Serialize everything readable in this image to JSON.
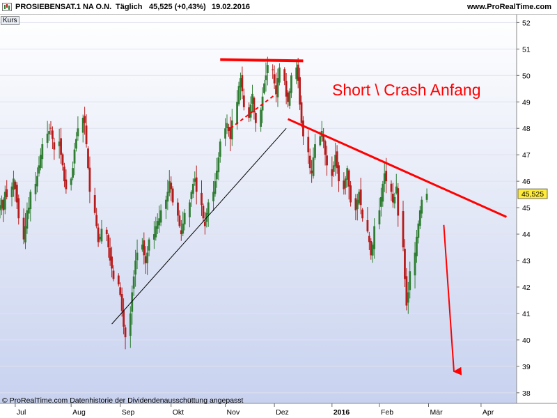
{
  "header": {
    "symbol": "PROSIEBENSAT.1  NA O.N.",
    "period": "Täglich",
    "price_change": "45,525 (+0,43%)",
    "date": "19.02.2016",
    "site": "www.ProRealTime.com"
  },
  "panel_label": "Kurs",
  "footer_note": "© ProRealTime.com  Datenhistorie der Dividendenausschüttung angepasst",
  "colors": {
    "up_candle": "#2e7d32",
    "down_candle": "#b71c1c",
    "annotation_red": "#ff0000",
    "background_top": "#ffffff",
    "background_bottom": "#c8d2ef"
  },
  "chart_data": {
    "type": "candlestick",
    "x_tick_labels": [
      "Jul",
      "Aug",
      "Sep",
      "Okt",
      "Nov",
      "Dez",
      "2016",
      "Feb",
      "Mär",
      "Apr"
    ],
    "y_tick_labels": [
      38,
      39,
      40,
      41,
      42,
      43,
      44,
      45,
      46,
      47,
      48,
      49,
      50,
      51,
      52
    ],
    "y_range": [
      37.6,
      52.3
    ],
    "last_price_label": "45,525",
    "last_price": 45.525,
    "annotation_text": "Short \\ Crash Anfang",
    "close_series": [
      45.1,
      45.3,
      44.9,
      45.6,
      45.4,
      45.8,
      46.1,
      45.7,
      45.2,
      44.6,
      43.8,
      44.3,
      44.9,
      45.0,
      45.6,
      45.9,
      46.2,
      46.6,
      47.0,
      47.4,
      47.8,
      47.9,
      48.0,
      47.6,
      47.2,
      47.5,
      47.0,
      46.6,
      46.0,
      45.7,
      46.1,
      46.5,
      47.2,
      47.6,
      48.0,
      48.4,
      48.2,
      47.4,
      46.5,
      45.6,
      44.8,
      44.3,
      43.7,
      43.9,
      44.2,
      44.0,
      43.5,
      43.0,
      42.7,
      42.3,
      42.1,
      41.7,
      41.1,
      40.5,
      40.1,
      41.0,
      41.8,
      42.4,
      43.0,
      43.3,
      43.6,
      43.2,
      42.9,
      43.3,
      43.8,
      44.0,
      44.3,
      44.5,
      44.6,
      44.9,
      45.3,
      45.6,
      46.0,
      45.7,
      45.2,
      44.7,
      44.3,
      44.0,
      44.4,
      44.8,
      45.2,
      45.6,
      45.9,
      46.1,
      45.6,
      45.1,
      44.6,
      44.3,
      44.8,
      45.2,
      45.6,
      46.0,
      46.4,
      46.9,
      47.5,
      48.0,
      48.2,
      47.9,
      47.6,
      48.3,
      49.0,
      49.6,
      49.9,
      49.4,
      48.8,
      48.4,
      48.9,
      49.3,
      48.6,
      48.2,
      48.7,
      49.2,
      49.7,
      50.0,
      50.4,
      50.2,
      49.7,
      49.3,
      49.9,
      50.3,
      49.8,
      49.2,
      49.0,
      49.4,
      50.0,
      50.3,
      49.8,
      48.9,
      48.2,
      47.7,
      47.1,
      46.5,
      46.3,
      46.9,
      47.4,
      47.7,
      47.9,
      47.5,
      47.0,
      46.6,
      46.2,
      46.6,
      47.0,
      46.5,
      46.0,
      45.7,
      46.1,
      46.5,
      45.8,
      45.2,
      44.9,
      45.3,
      45.6,
      45.1,
      44.6,
      44.1,
      43.7,
      43.2,
      43.6,
      44.3,
      44.9,
      45.4,
      45.9,
      46.3,
      46.0,
      45.6,
      45.2,
      45.4,
      45.8,
      44.7,
      43.5,
      42.3,
      41.3,
      41.8,
      42.6,
      43.3,
      43.9,
      44.4,
      44.9,
      45.3,
      45.525
    ],
    "x_start_date": "2015-06-22",
    "x_end_date": "2016-04-22",
    "annotations": [
      {
        "kind": "support_line",
        "from": [
          "2015-08-27",
          40.6
        ],
        "to": [
          "2015-12-08",
          48.0
        ],
        "color": "black"
      },
      {
        "kind": "resistance_top",
        "from": [
          "2015-10-30",
          50.6
        ],
        "to": [
          "2015-12-18",
          50.55
        ],
        "color": "red"
      },
      {
        "kind": "dashed_trend",
        "from": [
          "2015-11-05",
          48.0
        ],
        "to": [
          "2015-12-02",
          49.3
        ],
        "color": "red"
      },
      {
        "kind": "downtrend_line",
        "from": [
          "2015-12-09",
          48.35
        ],
        "to": [
          "2016-04-16",
          44.65
        ],
        "color": "red"
      },
      {
        "kind": "arrow_down",
        "from": [
          "2016-03-10",
          44.35
        ],
        "to": [
          "2016-03-16",
          38.8
        ],
        "color": "red"
      }
    ]
  }
}
